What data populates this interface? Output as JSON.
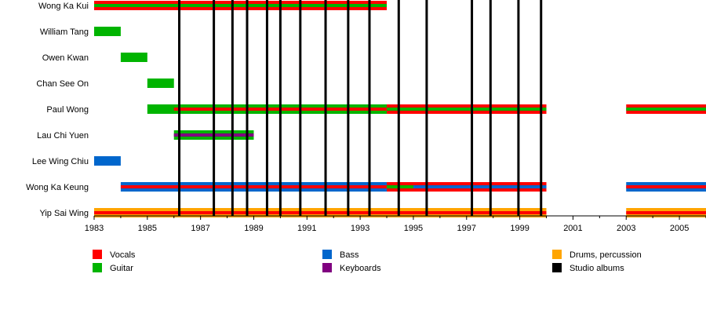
{
  "chart_data": {
    "type": "timeline",
    "x_range": [
      1983,
      2006
    ],
    "x_ticks": [
      1983,
      1985,
      1987,
      1989,
      1991,
      1993,
      1995,
      1997,
      1999,
      2001,
      2003,
      2005
    ],
    "members": [
      "Wong Ka Kui",
      "William Tang",
      "Owen Kwan",
      "Chan See On",
      "Paul Wong",
      "Lau Chi Yuen",
      "Lee Wing Chiu",
      "Wong Ka Keung",
      "Yip Sai Wing"
    ],
    "roles": [
      {
        "key": "vocals",
        "label": "Vocals",
        "color": "#ff0000"
      },
      {
        "key": "guitar",
        "label": "Guitar",
        "color": "#00b400"
      },
      {
        "key": "bass",
        "label": "Bass",
        "color": "#0066cc"
      },
      {
        "key": "keyboards",
        "label": "Keyboards",
        "color": "#800080"
      },
      {
        "key": "drums",
        "label": "Drums, percussion",
        "color": "#ffa500"
      },
      {
        "key": "albums",
        "label": "Studio albums",
        "color": "#000000"
      }
    ],
    "bars": [
      {
        "member": "Wong Ka Kui",
        "role": "vocals",
        "from": 1983.0,
        "to": 1994.0,
        "layer": "main"
      },
      {
        "member": "Wong Ka Kui",
        "role": "guitar",
        "from": 1983.0,
        "to": 1994.0,
        "layer": "stripe"
      },
      {
        "member": "William Tang",
        "role": "guitar",
        "from": 1983.0,
        "to": 1984.0,
        "layer": "main"
      },
      {
        "member": "Owen Kwan",
        "role": "guitar",
        "from": 1984.0,
        "to": 1985.0,
        "layer": "main"
      },
      {
        "member": "Chan See On",
        "role": "guitar",
        "from": 1985.0,
        "to": 1986.0,
        "layer": "main"
      },
      {
        "member": "Paul Wong",
        "role": "guitar",
        "from": 1985.0,
        "to": 1994.0,
        "layer": "main"
      },
      {
        "member": "Paul Wong",
        "role": "vocals",
        "from": 1986.0,
        "to": 1994.0,
        "layer": "stripe"
      },
      {
        "member": "Paul Wong",
        "role": "vocals",
        "from": 1994.0,
        "to": 2000.0,
        "layer": "main"
      },
      {
        "member": "Paul Wong",
        "role": "guitar",
        "from": 1994.0,
        "to": 2000.0,
        "layer": "stripe"
      },
      {
        "member": "Paul Wong",
        "role": "vocals",
        "from": 2003.0,
        "to": 2006.0,
        "layer": "main"
      },
      {
        "member": "Paul Wong",
        "role": "guitar",
        "from": 2003.0,
        "to": 2006.0,
        "layer": "stripe"
      },
      {
        "member": "Lau Chi Yuen",
        "role": "guitar",
        "from": 1986.0,
        "to": 1989.0,
        "layer": "main"
      },
      {
        "member": "Lau Chi Yuen",
        "role": "keyboards",
        "from": 1986.0,
        "to": 1989.0,
        "layer": "stripe"
      },
      {
        "member": "Lee Wing Chiu",
        "role": "bass",
        "from": 1983.0,
        "to": 1984.0,
        "layer": "main"
      },
      {
        "member": "Wong Ka Keung",
        "role": "bass",
        "from": 1984.0,
        "to": 1994.0,
        "layer": "main"
      },
      {
        "member": "Wong Ka Keung",
        "role": "vocals",
        "from": 1984.0,
        "to": 1994.0,
        "layer": "stripe"
      },
      {
        "member": "Wong Ka Keung",
        "role": "vocals",
        "from": 1994.0,
        "to": 2000.0,
        "layer": "main"
      },
      {
        "member": "Wong Ka Keung",
        "role": "bass",
        "from": 1994.0,
        "to": 2000.0,
        "layer": "stripe"
      },
      {
        "member": "Wong Ka Keung",
        "role": "guitar",
        "from": 1994.0,
        "to": 1995.0,
        "layer": "stripe"
      },
      {
        "member": "Wong Ka Keung",
        "role": "bass",
        "from": 2003.0,
        "to": 2006.0,
        "layer": "main"
      },
      {
        "member": "Wong Ka Keung",
        "role": "vocals",
        "from": 2003.0,
        "to": 2006.0,
        "layer": "stripe"
      },
      {
        "member": "Yip Sai Wing",
        "role": "drums",
        "from": 1983.0,
        "to": 2000.0,
        "layer": "main"
      },
      {
        "member": "Yip Sai Wing",
        "role": "vocals",
        "from": 1983.0,
        "to": 2000.0,
        "layer": "stripe"
      },
      {
        "member": "Yip Sai Wing",
        "role": "drums",
        "from": 2003.0,
        "to": 2006.0,
        "layer": "main"
      },
      {
        "member": "Yip Sai Wing",
        "role": "vocals",
        "from": 2003.0,
        "to": 2006.0,
        "layer": "stripe"
      }
    ],
    "studio_albums": [
      1986.2,
      1987.5,
      1988.2,
      1988.75,
      1989.5,
      1990.0,
      1990.75,
      1991.7,
      1992.55,
      1993.35,
      1994.45,
      1995.5,
      1997.2,
      1997.9,
      1998.95,
      1999.8
    ],
    "grid": false,
    "legend_position": "bottom"
  }
}
